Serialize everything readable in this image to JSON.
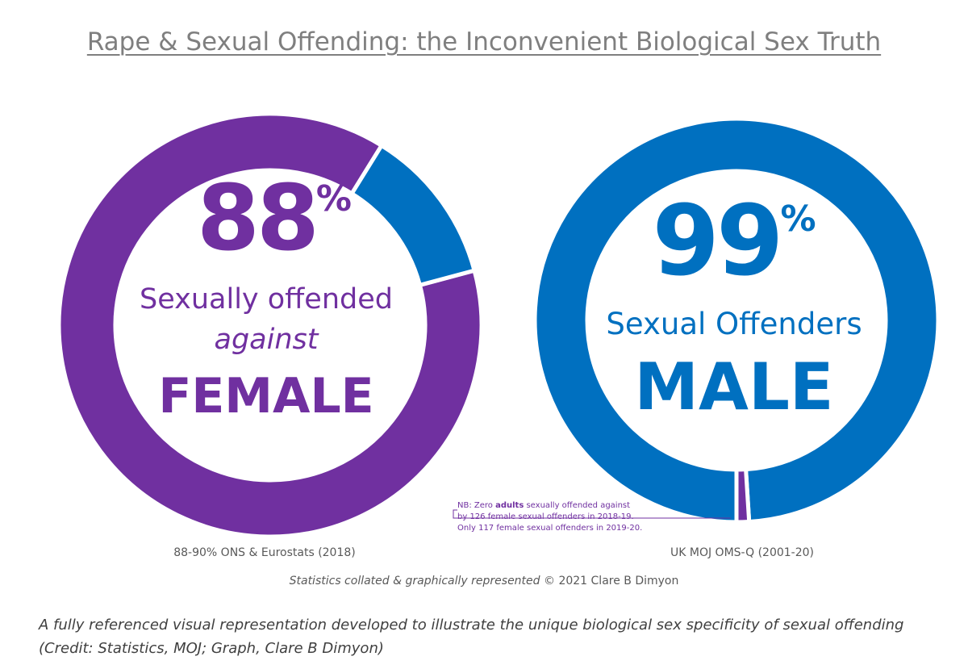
{
  "title": "Rape & Sexual Offending: the Inconvenient Biological Sex Truth",
  "colors": {
    "purple": "#7030a0",
    "blue": "#0070c0",
    "grey": "#7f7f7f"
  },
  "chart_data": [
    {
      "type": "pie",
      "variant": "donut",
      "labels": [
        "Female",
        "Male"
      ],
      "values": [
        88,
        12
      ],
      "colors": [
        "#7030a0",
        "#0070c0"
      ],
      "center": {
        "value": "88",
        "unit": "%",
        "line1": "Sexually offended",
        "line2": "against",
        "line3": "FEMALE"
      },
      "source": "88-90% ONS & Eurostats (2018)"
    },
    {
      "type": "pie",
      "variant": "donut",
      "labels": [
        "Male",
        "Female"
      ],
      "values": [
        99,
        1
      ],
      "colors": [
        "#0070c0",
        "#7030a0"
      ],
      "center": {
        "value": "99",
        "unit": "%",
        "line1": "Sexual Offenders",
        "line2": "MALE"
      },
      "source": "UK MOJ OMS-Q (2001-20)",
      "note": {
        "prefix": "NB: Zero ",
        "bold": "adults",
        "line1_rest": " sexually offended against",
        "line2": "by 126 female sexual offenders in 2018-19.",
        "line3": "Only 117 female sexual offenders in 2019-20."
      }
    }
  ],
  "credit": {
    "before": "Statistics collated & graphically represented",
    "copyright": "©",
    "after": "2021 Clare B Dimyon"
  },
  "caption": "A fully referenced visual representation developed to illustrate the unique biological sex specificity of sexual offending (Credit: Statistics, MOJ; Graph, Clare B Dimyon)"
}
